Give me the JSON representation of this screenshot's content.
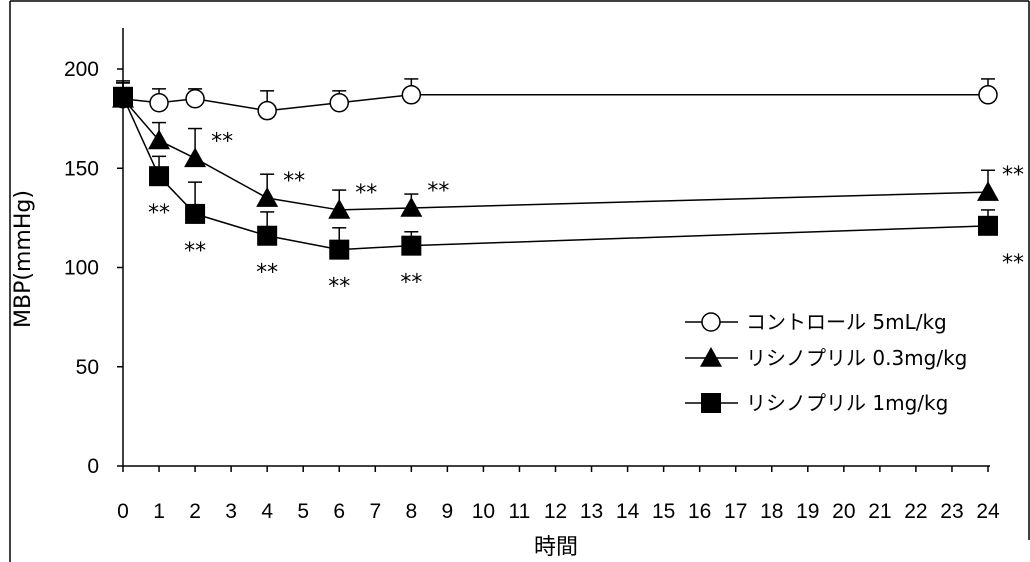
{
  "chart_data": {
    "type": "line",
    "title": "",
    "xlabel": "時間",
    "ylabel": "MBP(mmHg)",
    "xlim": [
      0,
      24
    ],
    "ylim": [
      0,
      200
    ],
    "x_ticks": [
      "0",
      "1",
      "2",
      "3",
      "4",
      "5",
      "6",
      "7",
      "8",
      "9",
      "10",
      "11",
      "12",
      "13",
      "14",
      "15",
      "16",
      "17",
      "18",
      "19",
      "20",
      "21",
      "22",
      "23",
      "24"
    ],
    "y_ticks": [
      "0",
      "50",
      "100",
      "150",
      "200"
    ],
    "grid": false,
    "legend_position": "right",
    "series": [
      {
        "name": "コントロール 5mL/kg",
        "marker": "open-circle",
        "color": "#000000",
        "x": [
          0,
          1,
          2,
          4,
          6,
          8,
          24
        ],
        "values": [
          185,
          183,
          185,
          179,
          183,
          187,
          187
        ],
        "error": [
          9,
          7,
          5,
          10,
          6,
          8,
          8
        ]
      },
      {
        "name": "リシノプリル 0.3mg/kg",
        "marker": "filled-triangle",
        "color": "#000000",
        "x": [
          0,
          1,
          2,
          4,
          6,
          8,
          24
        ],
        "values": [
          185,
          164,
          155,
          135,
          129,
          130,
          138
        ],
        "error": [
          8,
          9,
          15,
          12,
          10,
          7,
          11
        ]
      },
      {
        "name": "リシノプリル 1mg/kg",
        "marker": "filled-square",
        "color": "#000000",
        "x": [
          0,
          1,
          2,
          4,
          6,
          8,
          24
        ],
        "values": [
          186,
          146,
          127,
          116,
          109,
          111,
          121
        ],
        "error": [
          7,
          10,
          16,
          12,
          11,
          7,
          8
        ]
      }
    ],
    "annotations": [
      {
        "text": "**",
        "series": 1,
        "x": 2,
        "side": "right"
      },
      {
        "text": "**",
        "series": 1,
        "x": 4,
        "side": "right"
      },
      {
        "text": "**",
        "series": 1,
        "x": 6,
        "side": "right"
      },
      {
        "text": "**",
        "series": 1,
        "x": 8,
        "side": "right"
      },
      {
        "text": "**",
        "series": 1,
        "x": 24,
        "side": "right"
      },
      {
        "text": "**",
        "series": 2,
        "x": 1,
        "side": "below"
      },
      {
        "text": "**",
        "series": 2,
        "x": 2,
        "side": "below"
      },
      {
        "text": "**",
        "series": 2,
        "x": 4,
        "side": "below"
      },
      {
        "text": "**",
        "series": 2,
        "x": 6,
        "side": "below"
      },
      {
        "text": "**",
        "series": 2,
        "x": 8,
        "side": "below"
      },
      {
        "text": "**",
        "series": 2,
        "x": 24,
        "side": "below"
      }
    ]
  }
}
